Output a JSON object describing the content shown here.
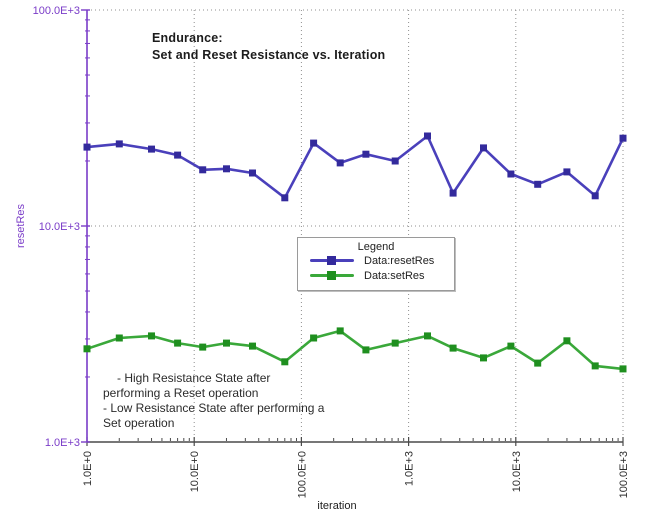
{
  "title": {
    "line1": "Endurance:",
    "line2": "Set and Reset Resistance vs. Iteration"
  },
  "axes": {
    "x_label": "iteration",
    "y_label": "resetRes",
    "x_tick_labels": [
      "1.0E+0",
      "10.0E+0",
      "100.0E+0",
      "1.0E+3",
      "10.0E+3",
      "100.0E+3"
    ],
    "x_tick_values": [
      1,
      10,
      100,
      1000,
      10000,
      100000
    ],
    "y_tick_labels": [
      "1.0E+3",
      "10.0E+3",
      "100.0E+3"
    ],
    "y_tick_values": [
      1000,
      10000,
      100000
    ]
  },
  "legend": {
    "title": "Legend",
    "entries": [
      {
        "label": "Data:resetRes",
        "line_color": "#4a40bb",
        "marker_color": "#332a9c"
      },
      {
        "label": "Data:setRes",
        "line_color": "#3aa83a",
        "marker_color": "#1f8f1f"
      }
    ]
  },
  "annotation": {
    "lines": [
      "- High Resistance State after",
      "performing a Reset operation",
      "- Low Resistance State after performing a",
      "Set operation"
    ]
  },
  "colors": {
    "axis_purple": "#7a3cc8",
    "x_axis": "#4a4a4a",
    "grid": "#8f8f8f",
    "tick_text": "#2e2e2e",
    "title_text": "#1c1c1c",
    "annotation_text": "#2b2b2b",
    "legend_text": "#222222",
    "background": "#ffffff"
  },
  "chart_data": {
    "type": "line",
    "title": "Endurance: Set and Reset Resistance vs. Iteration",
    "xlabel": "iteration",
    "ylabel": "resetRes",
    "xscale": "log",
    "yscale": "log",
    "xlim": [
      1,
      100000
    ],
    "ylim": [
      1000,
      100000
    ],
    "grid": "dotted-at-decades",
    "legend_position": "center",
    "x": [
      1,
      2,
      4,
      7,
      12,
      20,
      35,
      70,
      130,
      230,
      400,
      750,
      1500,
      2600,
      5000,
      9000,
      16000,
      30000,
      55000,
      100000
    ],
    "series": [
      {
        "name": "Data:resetRes",
        "marker": "square",
        "line_color": "#4a40bb",
        "marker_color": "#332a9c",
        "values": [
          23200,
          24000,
          22700,
          21300,
          18200,
          18400,
          17600,
          13500,
          24200,
          19600,
          21500,
          20000,
          26100,
          14200,
          23000,
          17400,
          15600,
          17800,
          13800,
          25500
        ]
      },
      {
        "name": "Data:setRes",
        "marker": "square",
        "line_color": "#3aa83a",
        "marker_color": "#1f8f1f",
        "values": [
          2700,
          3030,
          3100,
          2870,
          2750,
          2870,
          2780,
          2350,
          3030,
          3270,
          2670,
          2870,
          3100,
          2720,
          2450,
          2780,
          2320,
          2940,
          2250,
          2180
        ]
      }
    ]
  }
}
